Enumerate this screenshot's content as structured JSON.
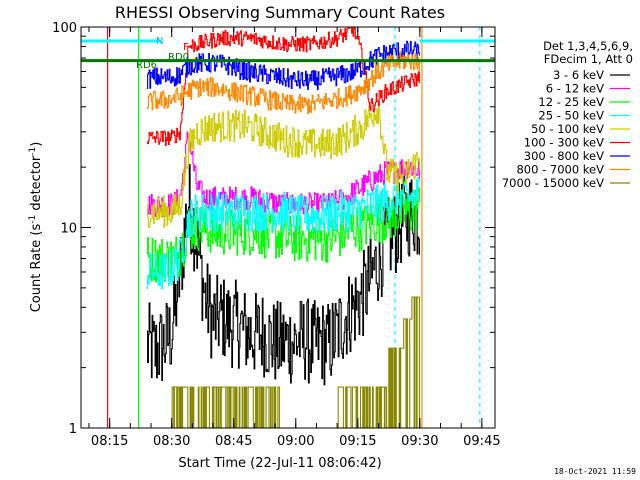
{
  "chart_data": {
    "type": "line",
    "title": "RHESSI Observing Summary Count Rates",
    "xlabel": "Start Time (22-Jul-11 08:06:42)",
    "ylabel_main": "Count Rate (s",
    "ylabel_sup1": "-1",
    "ylabel_mid": " detector",
    "ylabel_sup2": "-1",
    "ylabel_end": ")",
    "y_scale": "log",
    "ylim": [
      1,
      100
    ],
    "xlim_minutes": [
      8.07,
      9.75
    ],
    "x_ticks": [
      {
        "label": "08:15",
        "min": 15
      },
      {
        "label": "08:30",
        "min": 30
      },
      {
        "label": "08:45",
        "min": 45
      },
      {
        "label": "09:00",
        "min": 60
      },
      {
        "label": "09:15",
        "min": 75
      },
      {
        "label": "09:30",
        "min": 90
      },
      {
        "label": "09:45",
        "min": 105
      }
    ],
    "y_ticks": [
      {
        "label": "100",
        "value": 100
      },
      {
        "label": "10",
        "value": 10
      },
      {
        "label": "1",
        "value": 1
      }
    ],
    "legend_header": [
      "Det 1,3,4,5,6,9,",
      "FDecim 1, Att 0"
    ],
    "series": [
      {
        "name": "3 - 6 keV",
        "color": "#000000",
        "x": [
          24,
          26,
          28,
          30,
          32,
          34,
          36,
          38,
          40,
          42,
          44,
          46,
          48,
          50,
          52,
          54,
          56,
          58,
          60,
          62,
          64,
          66,
          68,
          70,
          72,
          74,
          76,
          78,
          80,
          82,
          84,
          86,
          88,
          90
        ],
        "y": [
          2.6,
          2.4,
          2.6,
          3.0,
          6.0,
          14,
          8.5,
          4.5,
          3.4,
          3.6,
          3.3,
          3.3,
          3.0,
          2.9,
          3.0,
          2.7,
          2.6,
          2.7,
          2.7,
          2.8,
          2.6,
          2.7,
          2.6,
          3.0,
          3.6,
          4.0,
          4.5,
          5.5,
          7.0,
          8.5,
          9.5,
          11,
          12,
          11
        ]
      },
      {
        "name": "6 - 12 keV",
        "color": "#ff00ff",
        "x": [
          24,
          26,
          28,
          30,
          32,
          34,
          36,
          38,
          40,
          42,
          44,
          46,
          48,
          50,
          52,
          54,
          56,
          58,
          60,
          62,
          64,
          66,
          68,
          70,
          72,
          74,
          76,
          78,
          80,
          82,
          84,
          86,
          88,
          90
        ],
        "y": [
          13,
          13,
          13,
          13,
          14,
          30,
          16,
          14,
          14,
          14,
          14,
          14,
          14,
          14,
          13.5,
          13.5,
          13,
          13,
          13,
          13,
          13,
          13,
          13,
          13.5,
          14,
          15,
          16,
          17,
          18,
          19,
          19,
          20,
          20,
          19
        ]
      },
      {
        "name": "12 - 25 keV",
        "color": "#00ff00",
        "x": [
          24,
          26,
          28,
          30,
          32,
          34,
          36,
          38,
          40,
          42,
          44,
          46,
          48,
          50,
          52,
          54,
          56,
          58,
          60,
          62,
          64,
          66,
          68,
          70,
          72,
          74,
          76,
          78,
          80,
          82,
          84,
          86,
          88,
          90
        ],
        "y": [
          7.0,
          7.0,
          7.0,
          7.0,
          7.5,
          10,
          10,
          10,
          9.5,
          9.5,
          9.5,
          9.5,
          9.5,
          9.5,
          9.3,
          9.0,
          9.0,
          8.8,
          8.8,
          8.8,
          8.8,
          8.8,
          8.8,
          9.0,
          9.5,
          10,
          10,
          10.5,
          11,
          11,
          11.5,
          12,
          12,
          13
        ]
      },
      {
        "name": "25 - 50 keV",
        "color": "#00ffff",
        "x": [
          24,
          26,
          28,
          30,
          32,
          34,
          36,
          38,
          40,
          42,
          44,
          46,
          48,
          50,
          52,
          54,
          56,
          58,
          60,
          62,
          64,
          66,
          68,
          70,
          72,
          74,
          76,
          78,
          80,
          82,
          84,
          86,
          88,
          90
        ],
        "y": [
          6.0,
          6.0,
          6.0,
          6.3,
          7.0,
          11,
          12,
          12,
          12,
          12,
          12,
          12,
          12,
          12,
          12,
          12,
          12,
          12,
          11.5,
          11.5,
          11.5,
          11.5,
          11.5,
          12,
          12,
          12,
          12.5,
          13,
          13,
          13.5,
          14,
          14,
          14,
          15
        ]
      },
      {
        "name": "50 - 100 keV",
        "color": "#cccc00",
        "x": [
          24,
          26,
          28,
          30,
          32,
          34,
          36,
          38,
          40,
          42,
          44,
          46,
          48,
          50,
          52,
          54,
          56,
          58,
          60,
          62,
          64,
          66,
          68,
          70,
          72,
          74,
          76,
          78,
          80,
          82,
          84,
          86,
          88,
          90
        ],
        "y": [
          12,
          12,
          12,
          12,
          13,
          25,
          30,
          31,
          32,
          32,
          32,
          32,
          32,
          31,
          30,
          29,
          28,
          27,
          27,
          26,
          26,
          26,
          26,
          27,
          28,
          30,
          32,
          36,
          40,
          19,
          18,
          18,
          20,
          22
        ]
      },
      {
        "name": "100 - 300 keV",
        "color": "#ff0000",
        "x": [
          24,
          26,
          28,
          30,
          32,
          34,
          36,
          38,
          40,
          42,
          44,
          46,
          48,
          50,
          52,
          54,
          56,
          58,
          60,
          62,
          64,
          66,
          68,
          70,
          72,
          74,
          76,
          78,
          80,
          82,
          84,
          86,
          88,
          90
        ],
        "y": [
          28,
          28,
          28,
          28,
          30,
          80,
          82,
          84,
          86,
          88,
          88,
          88,
          88,
          87,
          86,
          84,
          83,
          82,
          82,
          82,
          82,
          84,
          86,
          88,
          92,
          98,
          72,
          40,
          44,
          48,
          50,
          52,
          54,
          56
        ]
      },
      {
        "name": "300 - 800 keV",
        "color": "#0000ff",
        "x": [
          24,
          26,
          28,
          30,
          32,
          34,
          36,
          38,
          40,
          42,
          44,
          46,
          48,
          50,
          52,
          54,
          56,
          58,
          60,
          62,
          64,
          66,
          68,
          70,
          72,
          74,
          76,
          78,
          80,
          82,
          84,
          86,
          88,
          90
        ],
        "y": [
          55,
          56,
          56,
          56,
          58,
          64,
          66,
          66,
          66,
          65,
          64,
          62,
          60,
          59,
          58,
          57,
          56,
          55,
          54,
          54,
          54,
          55,
          56,
          57,
          58,
          60,
          63,
          68,
          72,
          74,
          76,
          76,
          76,
          74
        ]
      },
      {
        "name": "800 - 7000 keV",
        "color": "#ff8800",
        "x": [
          24,
          26,
          28,
          30,
          32,
          34,
          36,
          38,
          40,
          42,
          44,
          46,
          48,
          50,
          52,
          54,
          56,
          58,
          60,
          62,
          64,
          66,
          68,
          70,
          72,
          74,
          76,
          78,
          80,
          82,
          84,
          86,
          88,
          90
        ],
        "y": [
          42,
          43,
          43,
          44,
          45,
          48,
          50,
          50,
          50,
          49,
          48,
          47,
          46,
          45,
          44,
          43,
          42,
          41,
          41,
          41,
          41,
          42,
          43,
          44,
          45,
          47,
          50,
          55,
          60,
          64,
          66,
          68,
          68,
          66
        ]
      },
      {
        "name": "7000 - 15000 keV",
        "color": "#888800",
        "x": [
          24,
          26,
          28,
          30,
          32,
          34,
          36,
          38,
          40,
          42,
          44,
          46,
          48,
          50,
          52,
          54,
          56,
          58,
          60,
          62,
          64,
          66,
          68,
          70,
          72,
          74,
          76,
          78,
          80,
          82,
          84,
          86,
          88,
          90
        ],
        "y": [
          1.0,
          1.0,
          1.0,
          1.6,
          1.6,
          1.6,
          1.6,
          1.6,
          1.6,
          1.6,
          1.6,
          1.6,
          1.6,
          1.6,
          1.6,
          1.6,
          1.0,
          1.0,
          1.0,
          1.0,
          1.0,
          1.0,
          1.0,
          1.6,
          1.6,
          1.6,
          1.6,
          1.6,
          1.6,
          2.5,
          2.5,
          3.5,
          4.5,
          5.0
        ]
      }
    ],
    "annotations": {
      "dark_green_line": {
        "label": "RD0",
        "color": "#007700",
        "y": 68
      },
      "flag_labels": [
        {
          "text": "N",
          "color": "#00aaff"
        },
        {
          "text": "F",
          "color": "#ff0000"
        },
        {
          "text": "RD0",
          "color": "#007700"
        },
        {
          "text": "RD6",
          "color": "#007700"
        }
      ],
      "vertical_markers": [
        {
          "x": 22,
          "color": "#00ffff",
          "style": "dashed"
        },
        {
          "x": 84,
          "color": "#00ffff",
          "style": "dashed"
        },
        {
          "x": 104.5,
          "color": "#00ffff",
          "style": "dashed"
        },
        {
          "x": 14.5,
          "color": "#ff0000",
          "style": "solid"
        },
        {
          "x": 90.5,
          "color": "#ff8800",
          "style": "solid"
        },
        {
          "x": 22,
          "color": "#00ff00",
          "style": "solid"
        }
      ]
    },
    "grid": false,
    "legend": "top-right outside"
  },
  "footer_date": "18-Oct-2021 11:59"
}
